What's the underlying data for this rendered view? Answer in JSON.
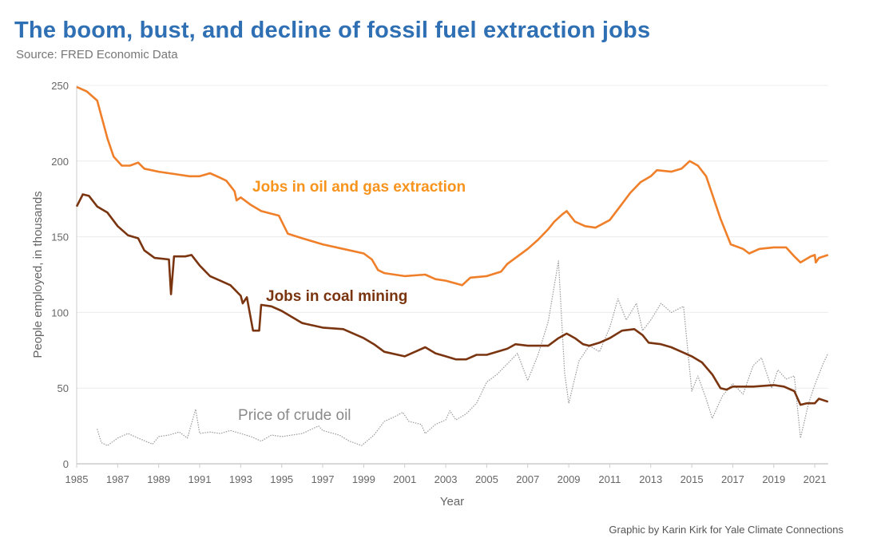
{
  "title": "The boom, bust, and decline of fossil fuel extraction jobs",
  "subtitle": "Source: FRED Economic Data",
  "credit": "Graphic by Karin Kirk for Yale Climate Connections",
  "chart_data": {
    "type": "line",
    "title": "The boom, bust, and decline of fossil fuel extraction jobs",
    "xlabel": "Year",
    "ylabel": "People employed, in thousands",
    "xlim": [
      1985,
      2021.65
    ],
    "ylim": [
      0,
      250
    ],
    "xticks": [
      1985,
      1987,
      1989,
      1991,
      1993,
      1995,
      1997,
      1999,
      2001,
      2003,
      2005,
      2007,
      2009,
      2011,
      2013,
      2015,
      2017,
      2019,
      2021
    ],
    "yticks": [
      0,
      50,
      100,
      150,
      200,
      250
    ],
    "grid": "horizontal",
    "series": [
      {
        "name": "Jobs in oil and gas extraction",
        "color": "#f07f2a",
        "label_color": "#f7941d",
        "style": "solid",
        "x": [
          1985,
          1985.5,
          1986,
          1986.5,
          1986.8,
          1987.2,
          1987.6,
          1988,
          1988.3,
          1989,
          1990,
          1990.5,
          1991,
          1991.5,
          1992,
          1992.3,
          1992.7,
          1992.8,
          1993,
          1993.5,
          1994,
          1994.86,
          1995.3,
          1996,
          1997,
          1998,
          1999,
          1999.4,
          1999.7,
          2000,
          2001,
          2002,
          2002.5,
          2003,
          2003.8,
          2004.2,
          2005,
          2005.7,
          2006,
          2007,
          2007.5,
          2008,
          2008.3,
          2008.7,
          2008.9,
          2009.3,
          2009.8,
          2010.3,
          2011,
          2011.5,
          2012,
          2012.5,
          2013,
          2013.3,
          2014,
          2014.5,
          2014.9,
          2015.3,
          2015.7,
          2016,
          2016.4,
          2016.9,
          2017.5,
          2017.8,
          2018.3,
          2019,
          2019.6,
          2020,
          2020.3,
          2020.8,
          2021,
          2021.05,
          2021.2,
          2021.65
        ],
        "y": [
          249,
          246,
          240,
          215,
          203,
          197,
          197,
          199,
          195,
          193,
          191,
          190,
          190,
          192,
          189,
          187,
          180,
          174,
          176,
          171,
          167,
          164,
          152,
          149,
          145,
          142,
          139,
          135,
          128,
          126,
          124,
          125,
          122,
          121,
          118,
          123,
          124,
          127,
          132,
          142,
          148,
          155,
          160,
          165,
          167,
          160,
          157,
          156,
          161,
          170,
          179,
          186,
          190,
          194,
          193,
          195,
          200,
          197,
          190,
          178,
          162,
          145,
          142,
          139,
          142,
          143,
          143,
          137,
          133,
          137,
          138,
          133,
          136,
          138
        ]
      },
      {
        "name": "Jobs in coal mining",
        "color": "#7a3510",
        "label_color": "#7a3510",
        "style": "solid",
        "x": [
          1985,
          1985.3,
          1985.6,
          1986,
          1986.5,
          1987,
          1987.5,
          1988,
          1988.3,
          1988.8,
          1989.5,
          1989.6,
          1989.75,
          1990.3,
          1990.6,
          1991,
          1991.5,
          1992,
          1992.5,
          1993,
          1993.1,
          1993.3,
          1993.6,
          1993.9,
          1994,
          1994.5,
          1995,
          1995.5,
          1996,
          1997,
          1998,
          1999,
          1999.5,
          2000,
          2001,
          2001.5,
          2002,
          2002.5,
          2003,
          2003.5,
          2004,
          2004.5,
          2005,
          2006,
          2006.4,
          2007,
          2008,
          2008.5,
          2008.9,
          2009.3,
          2009.7,
          2010,
          2010.5,
          2011,
          2011.6,
          2012.2,
          2012.6,
          2012.9,
          2013.5,
          2014,
          2014.5,
          2015,
          2015.5,
          2016,
          2016.4,
          2016.7,
          2017,
          2018,
          2019,
          2019.5,
          2020,
          2020.3,
          2020.6,
          2021,
          2021.2,
          2021.65
        ],
        "y": [
          170,
          178,
          177,
          170,
          166,
          157,
          151,
          149,
          141,
          136,
          135,
          112,
          137,
          137,
          138,
          131,
          124,
          121,
          118,
          111,
          106,
          110,
          88,
          88,
          105,
          104,
          101,
          97,
          93,
          90,
          89,
          83,
          79,
          74,
          71,
          74,
          77,
          73,
          71,
          69,
          69,
          72,
          72,
          76,
          79,
          78,
          78,
          83,
          86,
          83,
          79,
          78,
          80,
          83,
          88,
          89,
          85,
          80,
          79,
          77,
          74,
          71,
          67,
          59,
          50,
          49,
          51,
          51,
          52,
          51,
          48,
          39,
          40,
          40,
          43,
          41
        ]
      },
      {
        "name": "Price of crude oil",
        "color": "#999999",
        "label_color": "#8a8a8a",
        "style": "dotted",
        "x": [
          1986,
          1986.2,
          1986.5,
          1986.8,
          1987,
          1987.5,
          1988,
          1988.7,
          1989,
          1989.5,
          1990,
          1990.4,
          1990.8,
          1991,
          1991.5,
          1992,
          1992.5,
          1993,
          1993.5,
          1994,
          1994.5,
          1995,
          1996,
          1996.8,
          1997,
          1997.8,
          1998.3,
          1998.9,
          1999.5,
          2000,
          2000.5,
          2000.9,
          2001.2,
          2001.8,
          2002,
          2002.5,
          2003,
          2003.2,
          2003.5,
          2004,
          2004.5,
          2005,
          2005.5,
          2006,
          2006.5,
          2007,
          2007.5,
          2008,
          2008.5,
          2008.8,
          2009,
          2009.5,
          2010,
          2010.5,
          2011,
          2011.4,
          2011.8,
          2012.3,
          2012.6,
          2013,
          2013.5,
          2014,
          2014.6,
          2015,
          2015.3,
          2015.7,
          2016,
          2016.5,
          2017,
          2017.5,
          2018,
          2018.4,
          2018.9,
          2019.2,
          2019.6,
          2020,
          2020.3,
          2020.7,
          2021,
          2021.4,
          2021.65
        ],
        "y": [
          23,
          14,
          12,
          15,
          17,
          20,
          17,
          13,
          18,
          19,
          21,
          17,
          36,
          20,
          21,
          20,
          22,
          20,
          18,
          15,
          19,
          18,
          20,
          25,
          22,
          19,
          15,
          12,
          19,
          28,
          31,
          34,
          28,
          26,
          20,
          26,
          29,
          35,
          29,
          33,
          40,
          54,
          59,
          66,
          73,
          55,
          72,
          94,
          134,
          60,
          40,
          68,
          78,
          74,
          90,
          109,
          95,
          106,
          88,
          95,
          106,
          100,
          104,
          48,
          58,
          43,
          30,
          45,
          53,
          46,
          65,
          70,
          50,
          62,
          56,
          58,
          17,
          40,
          52,
          66,
          73
        ]
      }
    ]
  }
}
